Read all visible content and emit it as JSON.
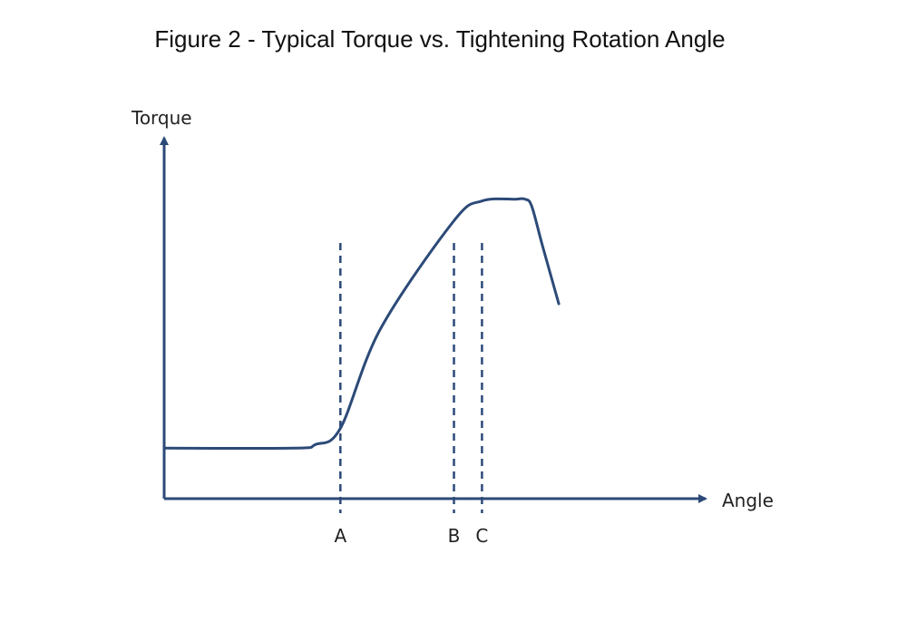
{
  "figure_title": "Figure 2 - Typical Torque vs. Tightening Rotation Angle",
  "chart_data": {
    "type": "line",
    "ylabel": "Torque",
    "xlabel": "Angle",
    "grid": false,
    "ticks": false,
    "xlim": [
      0,
      100
    ],
    "ylim": [
      0,
      100
    ],
    "colors": {
      "curve": "#2c4a78",
      "axes": "#2c4a78",
      "markers": "#2c4a78",
      "text": "#222222"
    },
    "markers": [
      {
        "label": "A",
        "x": 32.6
      },
      {
        "label": "B",
        "x": 53.6
      },
      {
        "label": "C",
        "x": 58.8
      }
    ],
    "series": [
      {
        "x": [
          0,
          24,
          28,
          32.6,
          40,
          53.6,
          58.8,
          65,
          66.8,
          68,
          70,
          73
        ],
        "y": [
          14,
          14,
          15,
          19.5,
          47,
          77,
          82.5,
          83,
          83,
          81,
          70,
          54
        ]
      }
    ]
  }
}
